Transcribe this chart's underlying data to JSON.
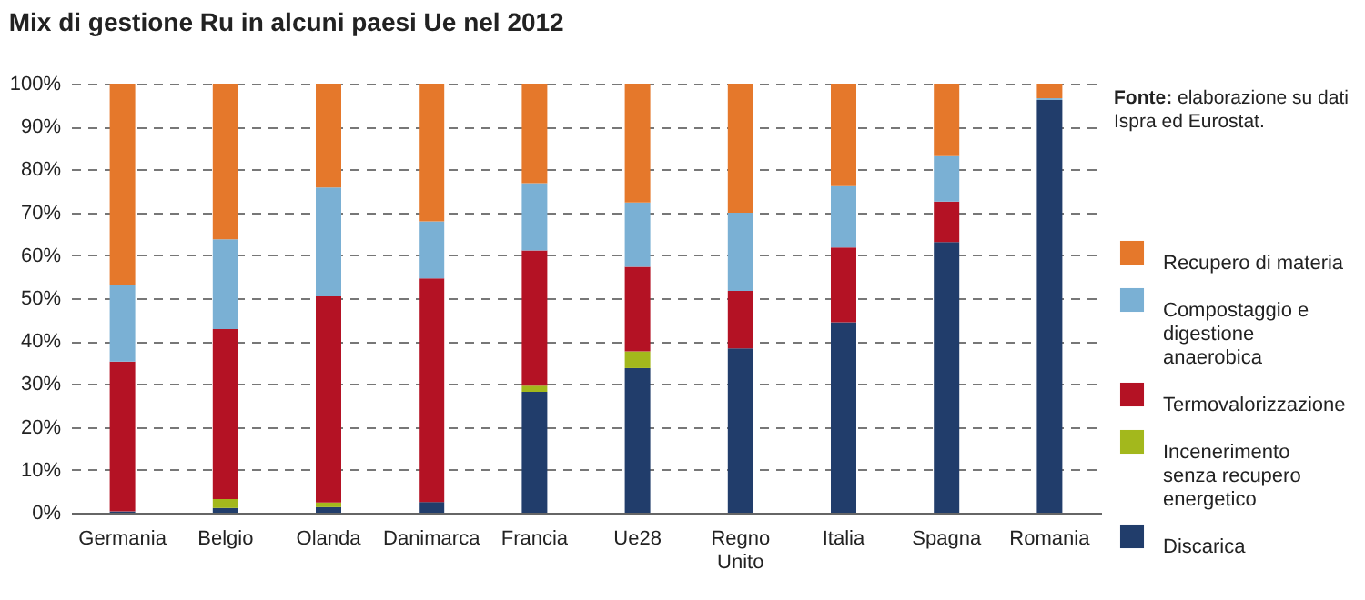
{
  "chart_data": {
    "type": "bar",
    "title": "Mix di gestione Ru in alcuni paesi Ue nel 2012",
    "categories": [
      "Germania",
      "Belgio",
      "Olanda",
      "Danimarca",
      "Francia",
      "Ue28",
      "Regno Unito",
      "Italia",
      "Spagna",
      "Romania"
    ],
    "series": [
      {
        "name": "Discarica",
        "color": "#213d6b",
        "values": [
          0.3,
          1.1,
          1.3,
          2.5,
          28.2,
          33.7,
          38.3,
          44.4,
          63.1,
          96.2
        ]
      },
      {
        "name": "Incenerimento senza recupero energetico",
        "color": "#a3b81c",
        "values": [
          0,
          2.1,
          1.1,
          0,
          1.4,
          3.9,
          0,
          0,
          0,
          0
        ]
      },
      {
        "name": "Termovalorizzazione",
        "color": "#b41224",
        "values": [
          34.9,
          39.6,
          48,
          52.1,
          31.5,
          19.7,
          13.4,
          17.4,
          9.4,
          0
        ]
      },
      {
        "name": "Compostaggio e digestione anaerobica",
        "color": "#7ab0d4",
        "values": [
          18,
          20.9,
          25.4,
          13.3,
          15.7,
          15,
          18.2,
          14.3,
          10.6,
          0.4
        ]
      },
      {
        "name": "Recupero di materia",
        "color": "#e5782b",
        "values": [
          46.8,
          36.3,
          24.2,
          32.1,
          23.2,
          27.7,
          30.1,
          23.9,
          16.9,
          3.4
        ]
      }
    ],
    "stacked": true,
    "ylim": [
      0,
      100
    ],
    "yticks": [
      {
        "value": 0,
        "label": "0%"
      },
      {
        "value": 10,
        "label": "10%"
      },
      {
        "value": 20,
        "label": "20%"
      },
      {
        "value": 30,
        "label": "30%"
      },
      {
        "value": 40,
        "label": "40%"
      },
      {
        "value": 50,
        "label": "50%"
      },
      {
        "value": 60,
        "label": "60%"
      },
      {
        "value": 70,
        "label": "70%"
      },
      {
        "value": 80,
        "label": "80%"
      },
      {
        "value": 90,
        "label": "90%"
      },
      {
        "value": 100,
        "label": "100%"
      }
    ],
    "grid": "y",
    "legend": "right",
    "annotations": [
      "Fonte: elaborazione su dati Ispra ed Eurostat."
    ]
  }
}
